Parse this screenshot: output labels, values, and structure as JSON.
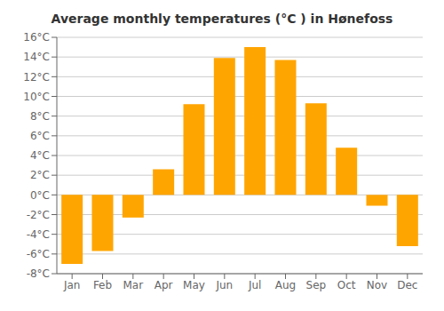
{
  "chart_data": {
    "type": "bar",
    "title": "Average monthly temperatures (°C ) in Hønefoss",
    "categories": [
      "Jan",
      "Feb",
      "Mar",
      "Apr",
      "May",
      "Jun",
      "Jul",
      "Aug",
      "Sep",
      "Oct",
      "Nov",
      "Dec"
    ],
    "values": [
      -7.0,
      -5.7,
      -2.3,
      2.6,
      9.2,
      13.9,
      15.0,
      13.7,
      9.3,
      4.8,
      -1.1,
      -5.2
    ],
    "color": "#FFA500",
    "ylim": [
      -8,
      16
    ],
    "yticks": [
      {
        "value": -8,
        "label": "-8°C"
      },
      {
        "value": -6,
        "label": "-6°C"
      },
      {
        "value": -4,
        "label": "-4°C"
      },
      {
        "value": -2,
        "label": "-2°C"
      },
      {
        "value": 0,
        "label": "0°C"
      },
      {
        "value": 2,
        "label": "2°C"
      },
      {
        "value": 4,
        "label": "4°C"
      },
      {
        "value": 6,
        "label": "6°C"
      },
      {
        "value": 8,
        "label": "8°C"
      },
      {
        "value": 10,
        "label": "10°C"
      },
      {
        "value": 12,
        "label": "12°C"
      },
      {
        "value": 14,
        "label": "14°C"
      },
      {
        "value": 16,
        "label": "16°C"
      }
    ],
    "grid": true
  }
}
